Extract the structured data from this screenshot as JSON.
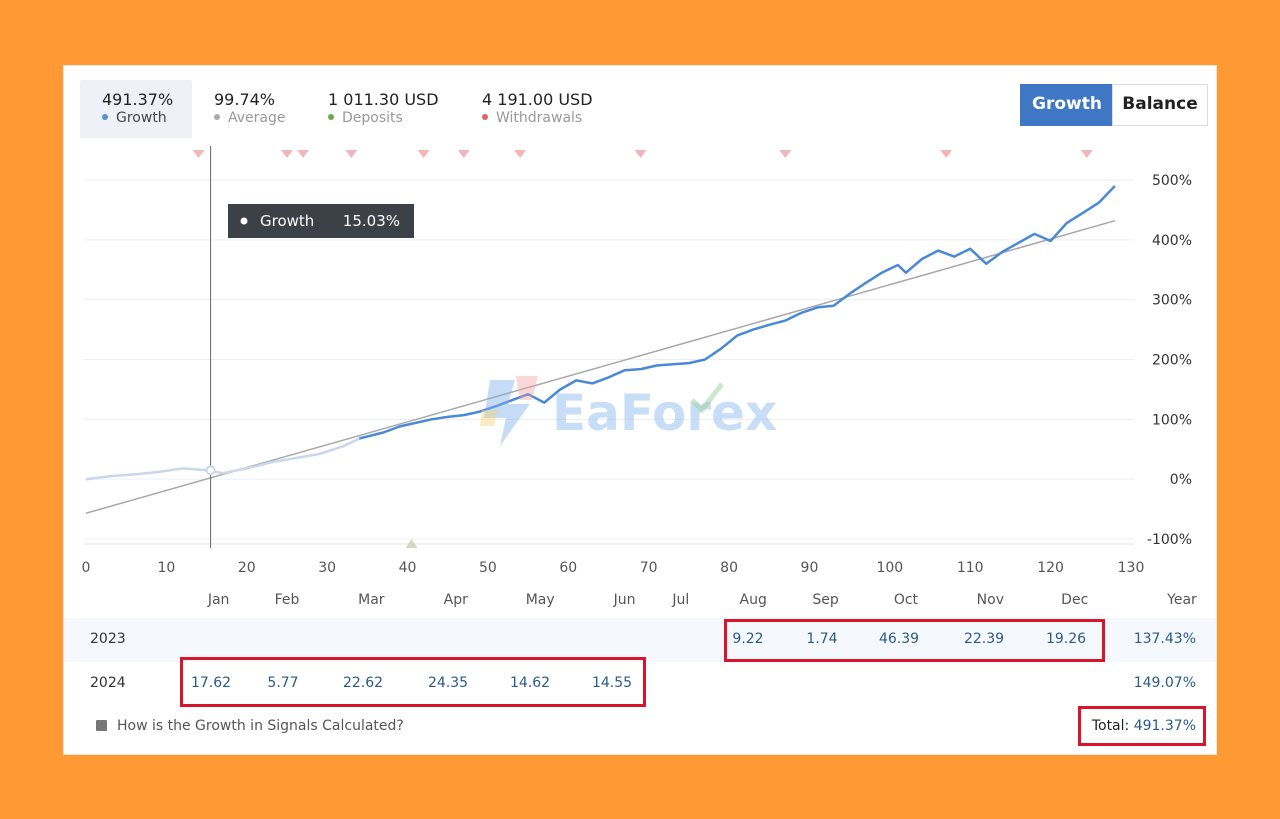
{
  "stats": [
    {
      "value": "491.37%",
      "label": "Growth",
      "dot_color": "#5b8fd6"
    },
    {
      "value": "99.74%",
      "label": "Average",
      "dot_color": "#aaaaaa"
    },
    {
      "value": "1 011.30 USD",
      "label": "Deposits",
      "dot_color": "#6aa84f"
    },
    {
      "value": "4 191.00 USD",
      "label": "Withdrawals",
      "dot_color": "#e06666"
    }
  ],
  "toggle": {
    "growth": "Growth",
    "balance": "Balance"
  },
  "tooltip": {
    "label": "Growth",
    "value": "15.03%"
  },
  "watermark": "EaForex",
  "chart_data": {
    "type": "line",
    "xlim": [
      0,
      130
    ],
    "ylim": [
      -100,
      500
    ],
    "x_ticks": [
      "0",
      "10",
      "20",
      "30",
      "40",
      "50",
      "60",
      "70",
      "80",
      "90",
      "100",
      "110",
      "120",
      "130"
    ],
    "y_ticks": [
      "500%",
      "400%",
      "300%",
      "200%",
      "100%",
      "0%",
      "-100%"
    ],
    "month_ticks": [
      {
        "label": "Jan",
        "x": 16.5
      },
      {
        "label": "Feb",
        "x": 25
      },
      {
        "label": "Mar",
        "x": 35.5
      },
      {
        "label": "Apr",
        "x": 46
      },
      {
        "label": "May",
        "x": 56.5
      },
      {
        "label": "Jun",
        "x": 67
      },
      {
        "label": "Jul",
        "x": 74
      },
      {
        "label": "Aug",
        "x": 83
      },
      {
        "label": "Sep",
        "x": 92
      },
      {
        "label": "Oct",
        "x": 102
      },
      {
        "label": "Nov",
        "x": 112.5
      },
      {
        "label": "Dec",
        "x": 123
      }
    ],
    "year_label": "Year",
    "cursor_x": 15.5,
    "withdrawal_markers": [
      14,
      25,
      27,
      33,
      42,
      47,
      54,
      69,
      87,
      107,
      124.5
    ],
    "deposit_markers": [
      40.5
    ],
    "series": [
      {
        "name": "Growth",
        "color": "#4a89d8",
        "x": [
          0,
          3,
          6,
          9,
          12,
          15,
          17,
          20,
          23,
          26,
          29,
          32,
          34,
          37,
          39,
          41,
          43,
          45,
          47,
          49,
          51,
          53,
          55,
          57,
          59,
          61,
          63,
          65,
          67,
          69,
          71,
          73,
          75,
          77,
          79,
          81,
          83,
          85,
          87,
          89,
          91,
          93,
          95,
          97,
          99,
          101,
          102,
          104,
          106,
          108,
          110,
          112,
          114,
          116,
          118,
          120,
          122,
          124,
          126,
          128
        ],
        "y": [
          0,
          5,
          8,
          12,
          18,
          15,
          10,
          18,
          28,
          35,
          42,
          55,
          68,
          78,
          88,
          94,
          100,
          104,
          107,
          113,
          122,
          132,
          142,
          128,
          150,
          165,
          160,
          170,
          182,
          184,
          190,
          192,
          194,
          200,
          218,
          240,
          250,
          258,
          265,
          278,
          287,
          290,
          310,
          328,
          345,
          358,
          345,
          368,
          382,
          372,
          385,
          360,
          380,
          395,
          410,
          398,
          428,
          445,
          462,
          490
        ]
      },
      {
        "name": "Average",
        "color": "#999999",
        "x": [
          0,
          128
        ],
        "y": [
          -57,
          432
        ]
      }
    ]
  },
  "table": {
    "rows": [
      {
        "year": "2023",
        "values": [
          null,
          null,
          null,
          null,
          null,
          null,
          null,
          "9.22",
          "1.74",
          "46.39",
          "22.39",
          "19.26"
        ],
        "total": "137.43%"
      },
      {
        "year": "2024",
        "values": [
          "17.62",
          "5.77",
          "22.62",
          "24.35",
          "14.62",
          "14.55",
          null,
          null,
          null,
          null,
          null,
          null
        ],
        "total": "149.07%"
      }
    ]
  },
  "help_text": "How is the Growth in Signals Calculated?",
  "total_label": "Total:",
  "total_value": "491.37%"
}
